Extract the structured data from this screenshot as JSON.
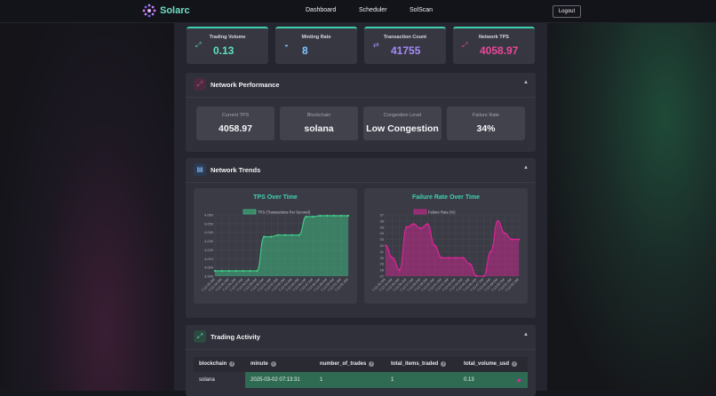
{
  "nav": {
    "brand": "Solarc",
    "links": [
      "Dashboard",
      "Scheduler",
      "SolScan"
    ],
    "logout": "Logout"
  },
  "stats": [
    {
      "label": "Trading Volume",
      "value": "0.13",
      "color": "#5fe0c0"
    },
    {
      "label": "Minting Rate",
      "value": "8",
      "color": "#7cc6ff"
    },
    {
      "label": "Transaction Count",
      "value": "41755",
      "color": "#a78bfa"
    },
    {
      "label": "Network TPS",
      "value": "4058.97",
      "color": "#ec4899"
    }
  ],
  "performance": {
    "title": "Network Performance",
    "cards": [
      {
        "label": "Current TPS",
        "value": "4058.97"
      },
      {
        "label": "Blockchain",
        "value": "solana"
      },
      {
        "label": "Congestion Level",
        "value": "Low Congestion"
      },
      {
        "label": "Failure Rate",
        "value": "34%"
      }
    ]
  },
  "trends": {
    "title": "Network Trends"
  },
  "activity": {
    "title": "Trading Activity",
    "columns": [
      "blockchain",
      "minute",
      "number_of_trades",
      "total_items_traded",
      "total_volume_usd"
    ],
    "rows": [
      [
        "solana",
        "2025-03-02 07:13:31",
        "1",
        "1",
        "0.13"
      ]
    ]
  },
  "chart_data": [
    {
      "type": "area",
      "title": "TPS Over Time",
      "legend": "TPS (Transactions Per Second)",
      "color": "#3fd18a",
      "ylim": [
        3990,
        4060
      ],
      "yticks": [
        "4,060",
        "4,050",
        "4,040",
        "4,030",
        "4,020",
        "4,010",
        "4,000",
        "3,990"
      ],
      "x": [
        "7:13:33 AM",
        "7:13:34 AM",
        "7:13:35 AM",
        "7:13:36 AM",
        "7:13:37 AM",
        "7:13:38 AM",
        "7:13:39 AM",
        "7:13:40 AM",
        "7:13:41 AM",
        "7:13:42 AM",
        "7:13:43 AM",
        "7:13:44 AM",
        "7:13:45 AM",
        "7:13:46 AM",
        "7:13:47 AM",
        "7:13:48 AM",
        "7:13:49 AM",
        "7:13:50 AM",
        "7:13:51 AM",
        "7:13:52 AM"
      ],
      "values": [
        3996,
        3996,
        3996,
        3996,
        3996,
        3996,
        3996,
        4035,
        4035,
        4037,
        4037,
        4037,
        4037,
        4058,
        4058,
        4059,
        4059,
        4059,
        4059,
        4059
      ]
    },
    {
      "type": "area",
      "title": "Failure Rate Over Time",
      "legend": "Failure Rate (%)",
      "color": "#e2249a",
      "ylim": [
        27,
        37
      ],
      "yticks": [
        "37",
        "36",
        "35",
        "34",
        "33",
        "32",
        "31",
        "30",
        "29",
        "28",
        "27"
      ],
      "x": [
        "7:13:33 AM",
        "7:13:34 AM",
        "7:13:35 AM",
        "7:13:36 AM",
        "7:13:37 AM",
        "7:13:38 AM",
        "7:13:39 AM",
        "7:13:40 AM",
        "7:13:41 AM",
        "7:13:42 AM",
        "7:13:43 AM",
        "7:13:44 AM",
        "7:13:45 AM",
        "7:13:46 AM",
        "7:13:47 AM",
        "7:13:48 AM",
        "7:13:49 AM",
        "7:13:50 AM",
        "7:13:51 AM",
        "7:13:52 AM"
      ],
      "values": [
        32,
        30,
        28,
        35,
        35.5,
        34.8,
        35.5,
        32,
        30,
        30,
        30,
        30,
        29,
        27,
        27,
        31,
        36,
        34,
        33,
        33
      ]
    }
  ]
}
